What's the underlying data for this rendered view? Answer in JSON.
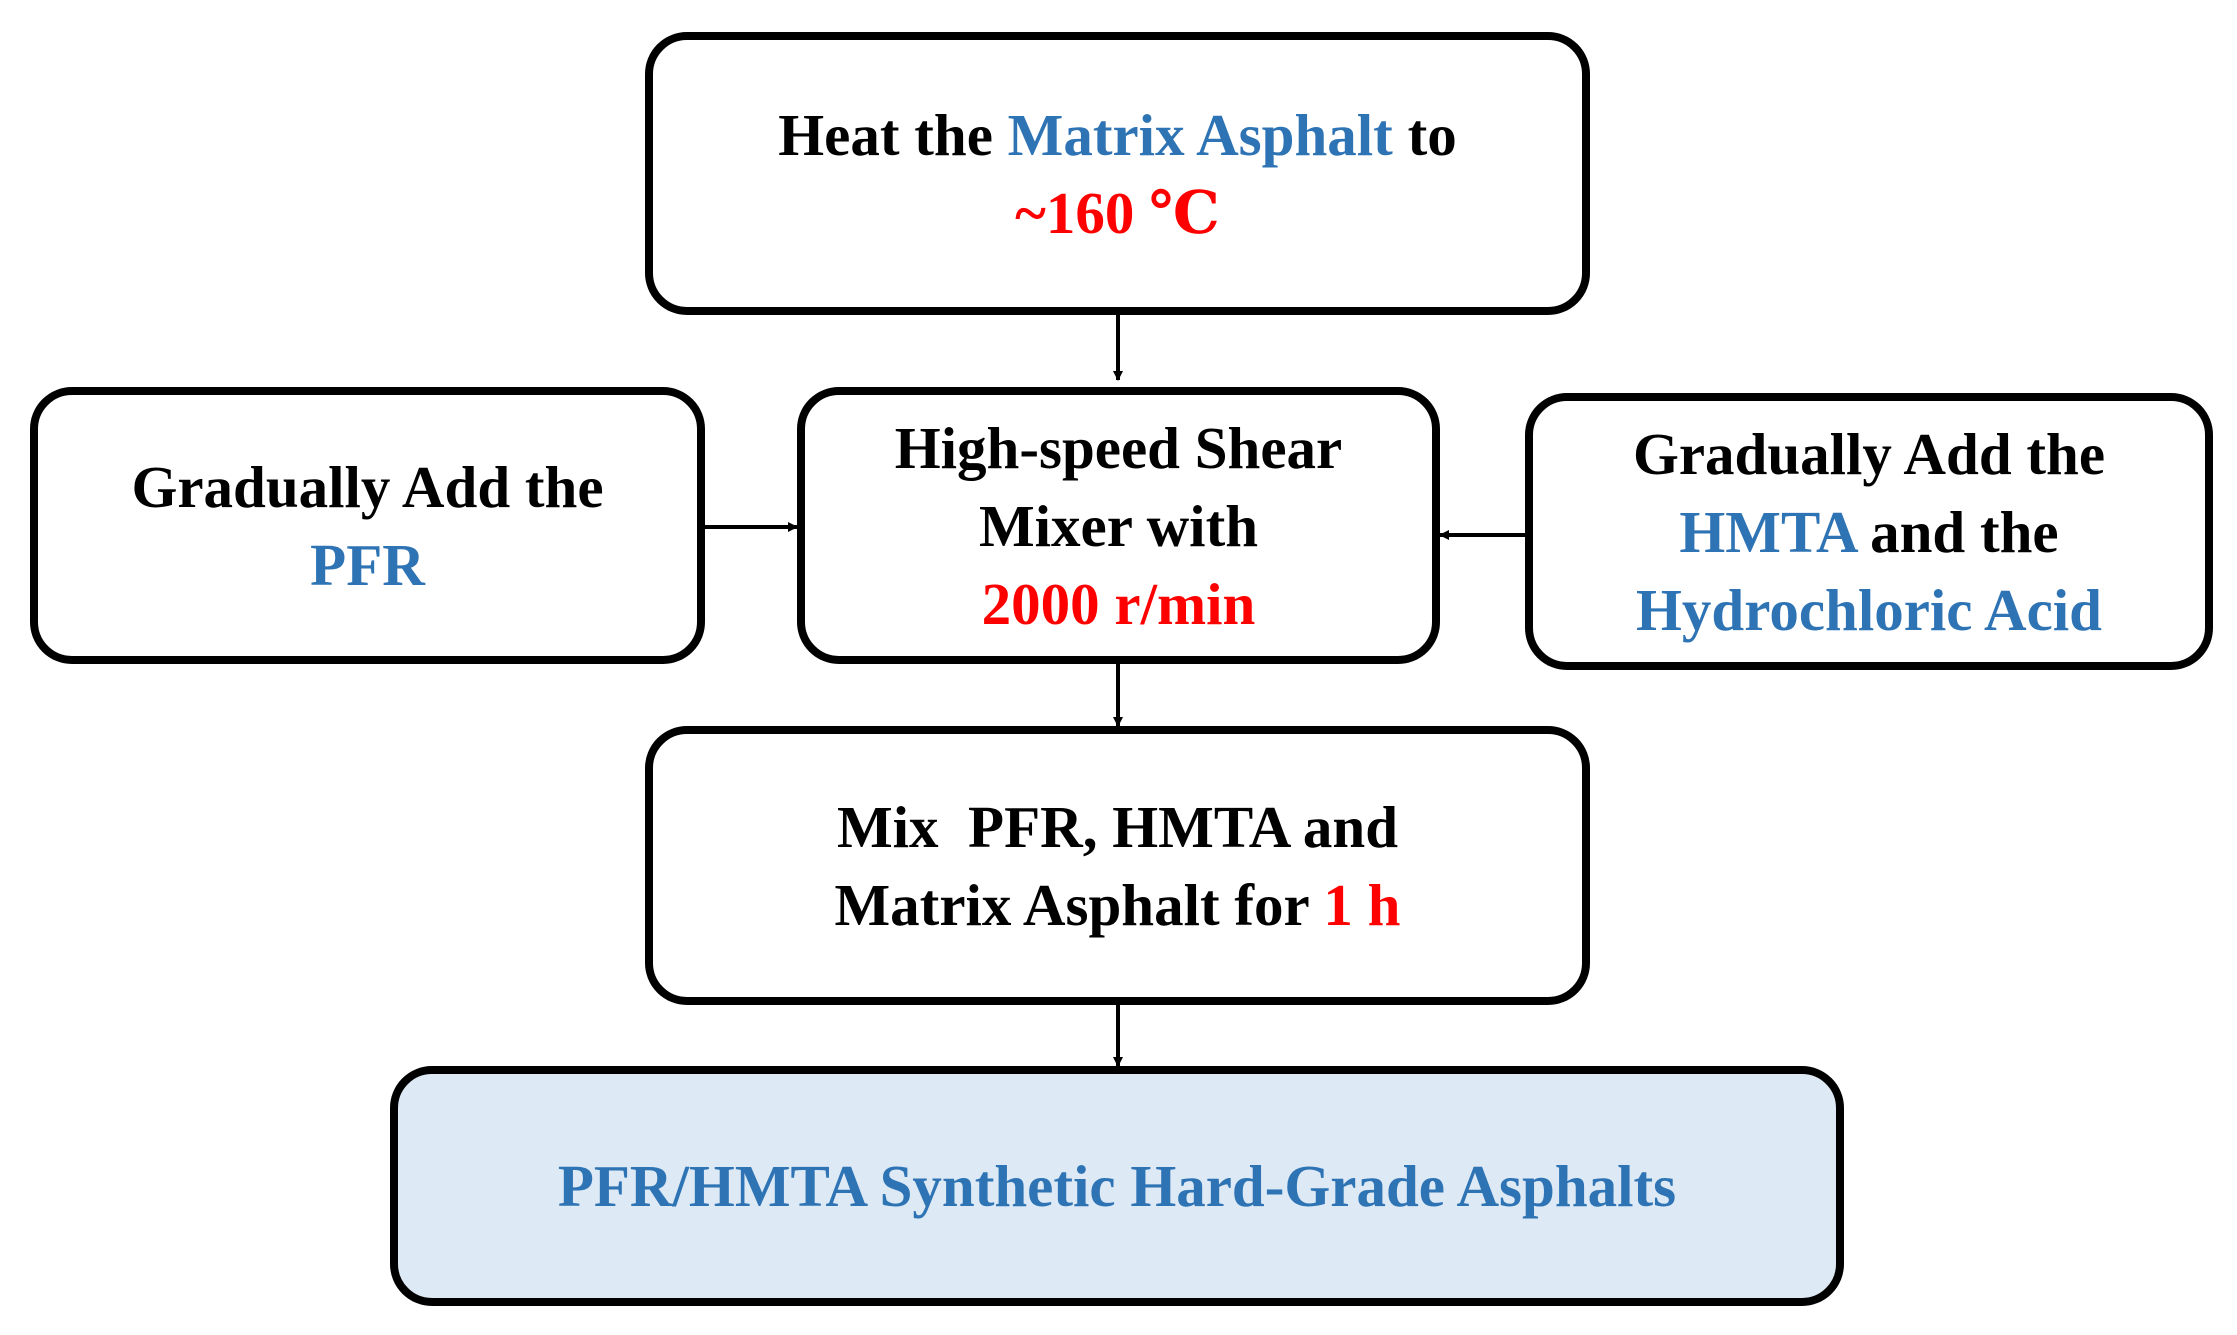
{
  "colors": {
    "black": "#000000",
    "blue": "#2e74b5",
    "red": "#ff0000",
    "final_fill": "#dde9f5"
  },
  "nodes": {
    "heat": {
      "l1_pre": "Heat the ",
      "l1_highlight": "Matrix Asphalt",
      "l1_post": " to",
      "l2_highlight": "~160 ℃"
    },
    "left": {
      "l1": "Gradually Add the",
      "l2_highlight": "PFR"
    },
    "shear": {
      "l1": "High-speed Shear",
      "l2": "Mixer with",
      "l3_highlight": "2000 r/min"
    },
    "right": {
      "l1": "Gradually Add the",
      "l2_highlight": "HMTA",
      "l2_post": " and the",
      "l3_highlight": "Hydrochloric Acid"
    },
    "mix": {
      "l1": "Mix  PFR, HMTA and",
      "l2_pre": "Matrix Asphalt for ",
      "l2_highlight": "1 h"
    },
    "final": {
      "l1_highlight": "PFR/HMTA Synthetic Hard-Grade Asphalts"
    }
  },
  "edges": [
    {
      "from": "heat",
      "to": "shear"
    },
    {
      "from": "left",
      "to": "shear"
    },
    {
      "from": "right",
      "to": "shear"
    },
    {
      "from": "shear",
      "to": "mix"
    },
    {
      "from": "mix",
      "to": "final"
    }
  ]
}
